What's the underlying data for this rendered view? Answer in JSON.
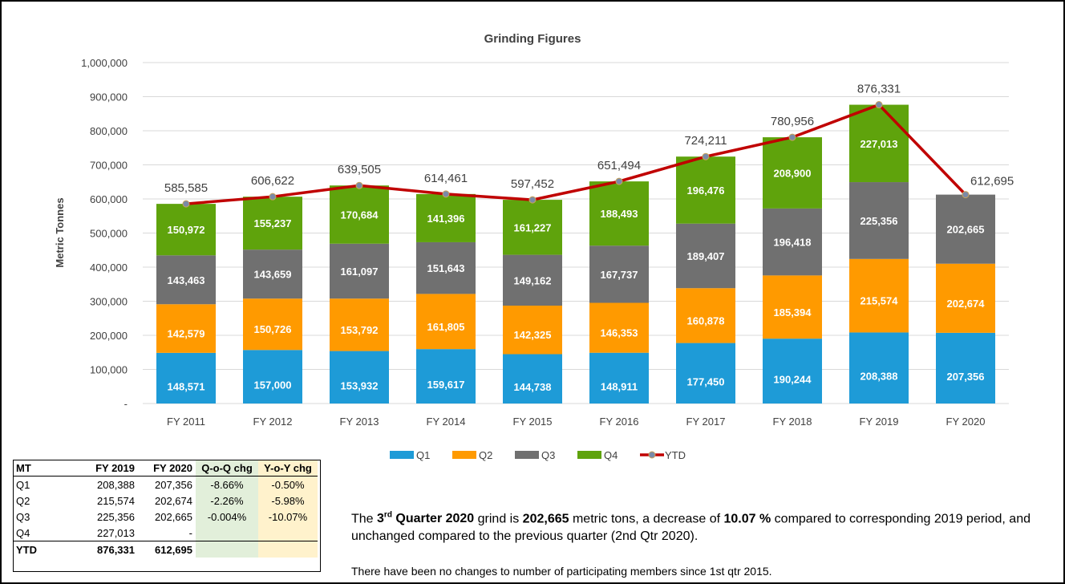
{
  "chart_data": {
    "type": "bar",
    "stacked": true,
    "title": "Grinding Figures",
    "ylabel": "Metric Tonnes",
    "xlabel": "",
    "ylim": [
      0,
      1000000
    ],
    "yticks": [
      "-",
      "100,000",
      "200,000",
      "300,000",
      "400,000",
      "500,000",
      "600,000",
      "700,000",
      "800,000",
      "900,000",
      "1,000,000"
    ],
    "categories": [
      "FY 2011",
      "FY 2012",
      "FY 2013",
      "FY 2014",
      "FY 2015",
      "FY 2016",
      "FY 2017",
      "FY 2018",
      "FY 2019",
      "FY 2020"
    ],
    "series": [
      {
        "name": "Q1",
        "color": "#1e9bd7",
        "values": [
          148571,
          157000,
          153932,
          159617,
          144738,
          148911,
          177450,
          190244,
          208388,
          207356
        ],
        "labels": [
          "148,571",
          "157,000",
          "153,932",
          "159,617",
          "144,738",
          "148,911",
          "177,450",
          "190,244",
          "208,388",
          "207,356"
        ]
      },
      {
        "name": "Q2",
        "color": "#ff9a00",
        "values": [
          142579,
          150726,
          153792,
          161805,
          142325,
          146353,
          160878,
          185394,
          215574,
          202674
        ],
        "labels": [
          "142,579",
          "150,726",
          "153,792",
          "161,805",
          "142,325",
          "146,353",
          "160,878",
          "185,394",
          "215,574",
          "202,674"
        ]
      },
      {
        "name": "Q3",
        "color": "#707070",
        "values": [
          143463,
          143659,
          161097,
          151643,
          149162,
          167737,
          189407,
          196418,
          225356,
          202665
        ],
        "labels": [
          "143,463",
          "143,659",
          "161,097",
          "151,643",
          "149,162",
          "167,737",
          "189,407",
          "196,418",
          "225,356",
          "202,665"
        ]
      },
      {
        "name": "Q4",
        "color": "#5fa30c",
        "values": [
          150972,
          155237,
          170684,
          141396,
          161227,
          188493,
          196476,
          208900,
          227013,
          null
        ],
        "labels": [
          "150,972",
          "155,237",
          "170,684",
          "141,396",
          "161,227",
          "188,493",
          "196,476",
          "208,900",
          "227,013",
          ""
        ]
      },
      {
        "name": "YTD",
        "type": "line",
        "color": "#c00000",
        "values": [
          585585,
          606622,
          639505,
          614461,
          597452,
          651494,
          724211,
          780956,
          876331,
          612695
        ],
        "labels": [
          "585,585",
          "606,622",
          "639,505",
          "614,461",
          "597,452",
          "651,494",
          "724,211",
          "780,956",
          "876,331",
          "612,695"
        ]
      }
    ],
    "legend_position": "bottom",
    "grid": true
  },
  "table": {
    "headers": [
      "MT",
      "FY 2019",
      "FY 2020",
      "Q-o-Q chg",
      "Y-o-Y chg"
    ],
    "rows": [
      [
        "Q1",
        "208,388",
        "207,356",
        "-8.66%",
        "-0.50%"
      ],
      [
        "Q2",
        "215,574",
        "202,674",
        "-2.26%",
        "-5.98%"
      ],
      [
        "Q3",
        "225,356",
        "202,665",
        "-0.004%",
        "-10.07%"
      ],
      [
        "Q4",
        "227,013",
        "-",
        "",
        ""
      ],
      [
        "YTD",
        "876,331",
        "612,695",
        "",
        ""
      ]
    ]
  },
  "note": {
    "pre": "The ",
    "quarter_num": "3",
    "quarter_sup": "rd",
    "quarter_rest": " Quarter 2020",
    "mid1": " grind is ",
    "grind_value": "202,665",
    "mid2": " metric tons, a decrease of ",
    "pct": "10.07 %",
    "post": " compared to corresponding 2019 period, and unchanged compared to the previous quarter (2nd Qtr 2020).",
    "line2": "There have been no changes to number of participating members since 1st qtr 2015."
  }
}
